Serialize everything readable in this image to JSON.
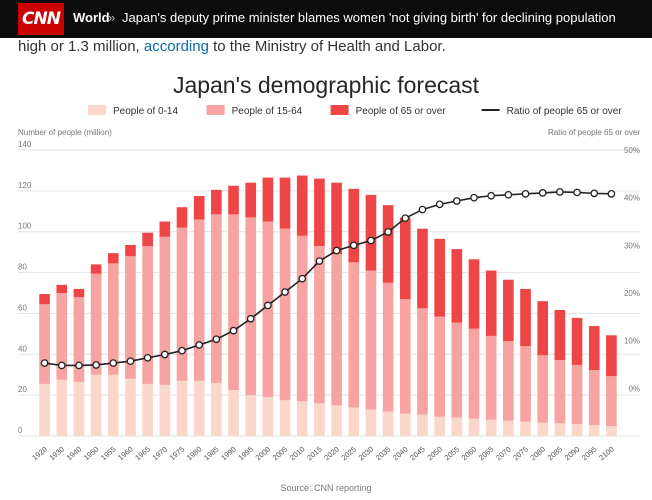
{
  "header": {
    "logo_text": "CNN",
    "section": "World",
    "separator": "»",
    "headline": "Japan's deputy prime minister blames women 'not giving birth' for declining population"
  },
  "article": {
    "text_before": "high or 1.3 million, ",
    "link_text": "according",
    "text_after": " to the Ministry of Health and Labor."
  },
  "source": "Source: CNN reporting",
  "colors": {
    "bar_0_14": "#fbd6ca",
    "bar_15_64": "#f6a3a1",
    "bar_65": "#ee4647",
    "ratio": "#222222",
    "grid": "#e2e2e2",
    "accent": "#cc0000"
  },
  "chart_data": {
    "type": "bar",
    "title": "Japan's demographic forecast",
    "ylabel_left": "Number of people (million)",
    "ylabel_right": "Ratio of people 65 or over",
    "ylim": [
      0,
      140
    ],
    "yticks": [
      0,
      20,
      40,
      60,
      80,
      100,
      120,
      140
    ],
    "y2lim": [
      -10,
      50
    ],
    "y2ticks": [
      0,
      10,
      20,
      30,
      40,
      50
    ],
    "y2tick_labels": [
      "0%",
      "10%",
      "20%",
      "30%",
      "40%",
      "50%"
    ],
    "grid": true,
    "stacked": true,
    "legend_position": "top",
    "categories": [
      "1920",
      "1930",
      "1940",
      "1950",
      "1955",
      "1960",
      "1965",
      "1970",
      "1975",
      "1980",
      "1985",
      "1990",
      "1995",
      "2000",
      "2005",
      "2010",
      "2015",
      "2020",
      "2025",
      "2030",
      "2035",
      "2040",
      "2045",
      "2050",
      "2055",
      "2060",
      "2065",
      "2070",
      "2075",
      "2080",
      "2085",
      "2090",
      "2095",
      "2100"
    ],
    "series": [
      {
        "name": "People of 0-14",
        "kind": "bar",
        "color": "#fbd6ca",
        "values": [
          25.5,
          27.5,
          26.5,
          30,
          30,
          28,
          25.5,
          25,
          27,
          27,
          26,
          22.5,
          20,
          19,
          17.5,
          17,
          16,
          15,
          14,
          13,
          12,
          11,
          10.5,
          9.5,
          9,
          8.5,
          8,
          7.5,
          7,
          6.5,
          6.2,
          5.8,
          5.3,
          4.8
        ]
      },
      {
        "name": "People of 15-64",
        "kind": "bar",
        "color": "#f6a3a1",
        "values": [
          39,
          42.5,
          41.5,
          49.5,
          54.5,
          60,
          67.5,
          72.5,
          75,
          79,
          82.5,
          86,
          87,
          86,
          84,
          81,
          77,
          74,
          71,
          68,
          63,
          56,
          52,
          49,
          46.5,
          44,
          41,
          39,
          37,
          33,
          31,
          29,
          27,
          24.5
        ]
      },
      {
        "name": "People of 65 or over",
        "kind": "bar",
        "color": "#ee4647",
        "values": [
          5,
          4,
          4,
          4.5,
          5,
          5.5,
          6.5,
          7.5,
          10,
          11.5,
          12,
          14,
          17,
          21.5,
          25,
          29.5,
          33,
          35,
          36,
          37,
          38,
          40,
          39,
          38,
          36,
          34,
          32,
          30,
          28,
          26.5,
          24.5,
          23,
          21.5,
          20
        ]
      },
      {
        "name": "Ratio of people 65 or over",
        "kind": "line",
        "color": "#222222",
        "axis": "right",
        "values": [
          5.3,
          4.8,
          4.8,
          4.9,
          5.3,
          5.7,
          6.4,
          7.1,
          7.9,
          9.1,
          10.3,
          12.1,
          14.6,
          17.4,
          20.2,
          23,
          26.7,
          28.9,
          30,
          31,
          32.8,
          35.7,
          37.5,
          38.6,
          39.3,
          40,
          40.4,
          40.6,
          40.8,
          41,
          41.2,
          41.1,
          40.9,
          40.8
        ]
      }
    ]
  }
}
